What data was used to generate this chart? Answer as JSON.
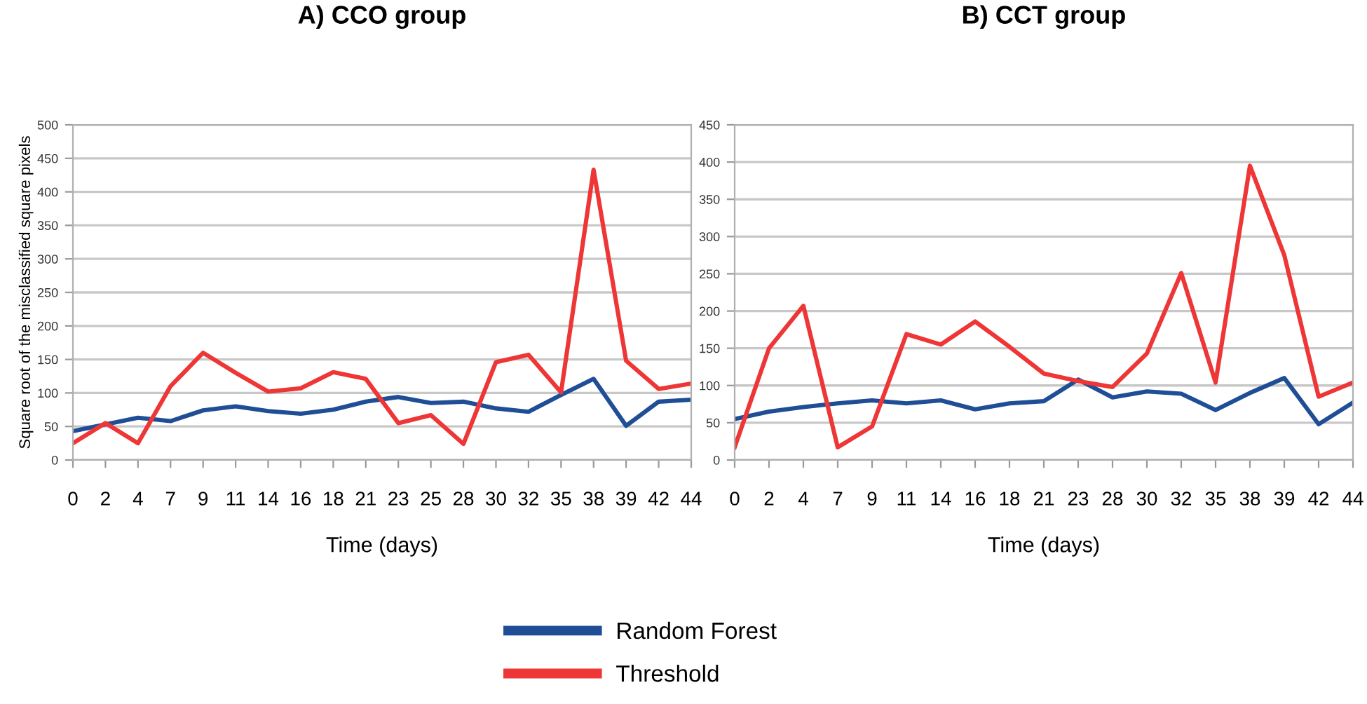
{
  "chart_data": [
    {
      "type": "line",
      "title": "A) CCO group",
      "xlabel": "Time (days)",
      "ylabel": "Square root of the misclassified square pixels",
      "categories": [
        "0",
        "2",
        "4",
        "7",
        "9",
        "11",
        "14",
        "16",
        "18",
        "21",
        "23",
        "25",
        "28",
        "30",
        "32",
        "35",
        "38",
        "39",
        "42",
        "44"
      ],
      "series": [
        {
          "name": "Random Forest",
          "color": "#1f4e96",
          "values": [
            43,
            53,
            63,
            58,
            74,
            80,
            73,
            69,
            75,
            87,
            94,
            85,
            87,
            77,
            72,
            97,
            121,
            51,
            87,
            90
          ]
        },
        {
          "name": "Threshold",
          "color": "#ee3636",
          "values": [
            25,
            55,
            25,
            110,
            160,
            130,
            102,
            107,
            131,
            121,
            55,
            67,
            24,
            146,
            157,
            101,
            433,
            148,
            106,
            114
          ]
        }
      ],
      "ylim": [
        0,
        500
      ],
      "yticks": [
        0,
        50,
        100,
        150,
        200,
        250,
        300,
        350,
        400,
        450,
        500
      ],
      "grid": "y",
      "legend": "bottom",
      "marker": "none"
    },
    {
      "type": "line",
      "title": "B) CCT group",
      "xlabel": "Time (days)",
      "categories": [
        "0",
        "2",
        "4",
        "7",
        "9",
        "11",
        "14",
        "16",
        "18",
        "21",
        "23",
        "28",
        "30",
        "32",
        "35",
        "38",
        "39",
        "42",
        "44"
      ],
      "series": [
        {
          "color": "#1f4e96",
          "values": [
            55,
            65,
            71,
            76,
            80,
            76,
            80,
            68,
            76,
            79,
            108,
            84,
            92,
            89,
            67,
            90,
            110,
            48,
            77
          ]
        },
        {
          "color": "#ee3636",
          "values": [
            17,
            150,
            207,
            17,
            45,
            169,
            155,
            186,
            152,
            116,
            106,
            98,
            143,
            251,
            104,
            395,
            275,
            85,
            104
          ]
        }
      ],
      "ylim": [
        0,
        450
      ],
      "yticks": [
        0,
        50,
        100,
        150,
        200,
        250,
        300,
        350,
        400,
        450
      ],
      "grid": "y",
      "marker": "none"
    }
  ]
}
